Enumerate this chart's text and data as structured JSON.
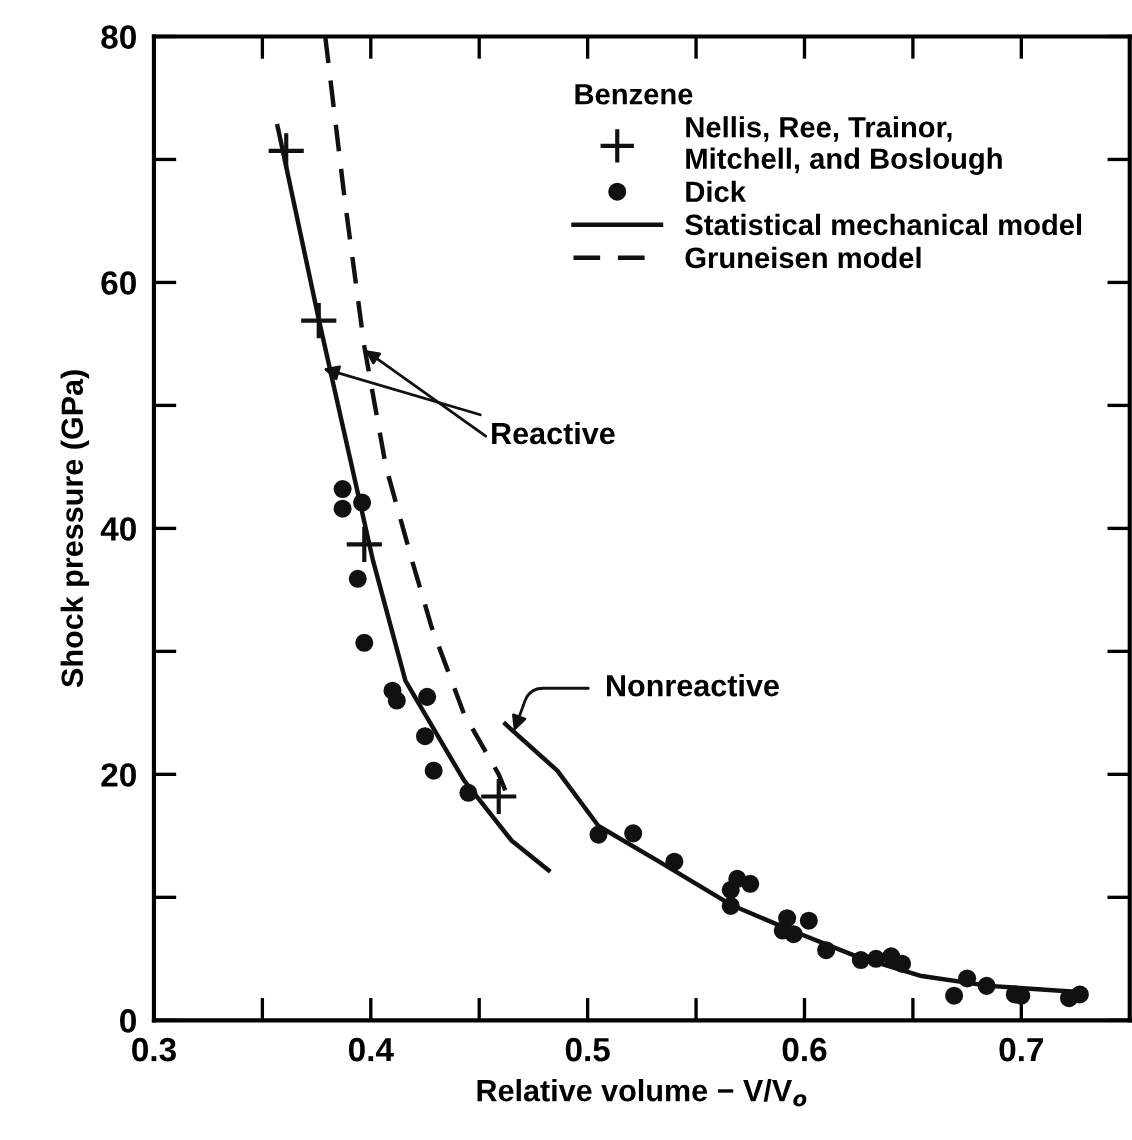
{
  "chart_data": {
    "type": "scatter",
    "xlabel": "Relative volume − V/V$_{o}$",
    "ylabel": "Shock pressure (GPa)",
    "legend_title": "Benzene",
    "legend": "top right",
    "grid": false,
    "xlim": [
      0.3,
      0.75
    ],
    "ylim": [
      0,
      80
    ],
    "xticks": [
      0.3,
      {
        "value": 0.35,
        "label": null
      },
      0.4,
      {
        "value": 0.45,
        "label": null
      },
      0.5,
      {
        "value": 0.55,
        "label": null
      },
      0.6,
      {
        "value": 0.65,
        "label": null
      },
      0.7
    ],
    "yticks": [
      0,
      {
        "value": 10,
        "label": null
      },
      20,
      {
        "value": 30,
        "label": null
      },
      40,
      {
        "value": 50,
        "label": null
      },
      60,
      {
        "value": 70,
        "label": null
      },
      80
    ],
    "series": [
      {
        "name": "Nellis, Ree, Trainor,\nMitchell, and Boslough",
        "marker": "cross",
        "color": "#111111",
        "x": [
          0.361,
          0.376,
          0.397,
          0.459
        ],
        "values": [
          70.7,
          56.9,
          38.7,
          18.2
        ]
      },
      {
        "name": "Dick",
        "marker": "circle",
        "color": "#111111",
        "x": [
          0.387,
          0.387,
          0.396,
          0.394,
          0.397,
          0.41,
          0.412,
          0.426,
          0.425,
          0.429,
          0.445,
          0.505,
          0.521,
          0.54,
          0.566,
          0.569,
          0.575,
          0.566,
          0.592,
          0.59,
          0.595,
          0.602,
          0.61,
          0.626,
          0.633,
          0.64,
          0.645,
          0.669,
          0.675,
          0.684,
          0.697,
          0.7,
          0.722,
          0.727
        ],
        "values": [
          43.2,
          41.6,
          42.1,
          35.9,
          30.7,
          26.8,
          26.0,
          26.3,
          23.1,
          20.3,
          18.5,
          15.1,
          15.2,
          12.9,
          10.6,
          11.5,
          11.1,
          9.3,
          8.3,
          7.3,
          7.0,
          8.1,
          5.7,
          4.9,
          5.0,
          5.2,
          4.6,
          2.0,
          3.4,
          2.8,
          2.1,
          2.0,
          1.8,
          2.1
        ]
      },
      {
        "name": "Statistical mechanical model",
        "type": "line",
        "marker": "none",
        "line_style": "solid",
        "color": "#111111",
        "x": [
          0.357,
          0.376,
          0.401,
          0.416,
          0.443,
          0.465,
          0.482
        ],
        "values": [
          72.7,
          57,
          37.4,
          27.6,
          19.5,
          14.6,
          12.2
        ]
      },
      {
        "type": "line",
        "marker": "none",
        "line_style": "solid",
        "color": "#111111",
        "x": [
          0.462,
          0.486,
          0.505,
          0.532,
          0.566,
          0.594,
          0.624,
          0.654,
          0.685,
          0.727
        ],
        "values": [
          24.1,
          20.3,
          15.8,
          13.0,
          9.4,
          7.3,
          5.2,
          3.6,
          2.8,
          2.3
        ]
      },
      {
        "name": "Gruneisen model",
        "type": "line",
        "marker": "none",
        "line_style": "dashed",
        "color": "#111111",
        "x": [
          0.379,
          0.388,
          0.397,
          0.407,
          0.419,
          0.428,
          0.443,
          0.459,
          0.462
        ],
        "values": [
          80,
          66.7,
          54.8,
          45.0,
          37.4,
          32.0,
          24.9,
          20.0,
          18.7
        ]
      }
    ],
    "annotations": [
      {
        "text": "Reactive",
        "x": 0.378,
        "y": 53
      },
      {
        "text": "Nonreactive",
        "x": 0.466,
        "y": 23.5
      }
    ]
  }
}
